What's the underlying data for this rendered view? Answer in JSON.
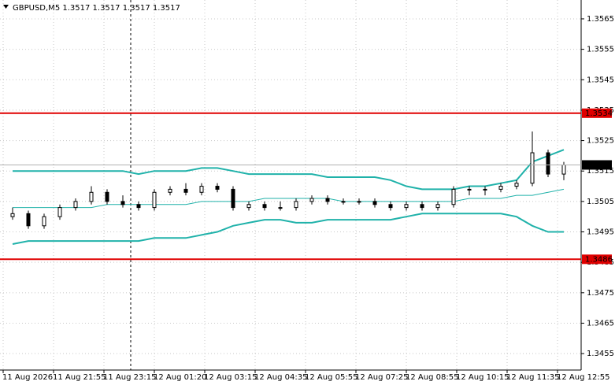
{
  "chart_data": {
    "type": "candlestick",
    "title": "GBPUSD,M5 1.3517 1.3517 1.3517 1.3517",
    "x": [
      4,
      9,
      14,
      19,
      24,
      29,
      34,
      39,
      44,
      49,
      54,
      59,
      64,
      69,
      74,
      79,
      84,
      89,
      94,
      99,
      104,
      109,
      114,
      119,
      124,
      129,
      134,
      139,
      144,
      149,
      154,
      159,
      164,
      169,
      174,
      179
    ],
    "open": [
      1.35,
      1.3501,
      1.3497,
      1.35,
      1.3503,
      1.3505,
      1.3508,
      1.3505,
      1.3504,
      1.3503,
      1.3508,
      1.3509,
      1.3508,
      1.351,
      1.3509,
      1.3503,
      1.3504,
      1.3503,
      1.3503,
      1.3505,
      1.3506,
      1.3505,
      1.3505,
      1.3505,
      1.3504,
      1.3503,
      1.3504,
      1.3503,
      1.3504,
      1.3509,
      1.3509,
      1.3509,
      1.351,
      1.3511,
      1.3521,
      1.3514
    ],
    "high": [
      1.3503,
      1.3502,
      1.3501,
      1.3504,
      1.3506,
      1.351,
      1.3509,
      1.3507,
      1.3505,
      1.3509,
      1.351,
      1.3511,
      1.3511,
      1.3511,
      1.351,
      1.3505,
      1.3505,
      1.3505,
      1.3506,
      1.3507,
      1.3507,
      1.3506,
      1.3506,
      1.3506,
      1.3505,
      1.3505,
      1.3505,
      1.3505,
      1.351,
      1.351,
      1.351,
      1.3511,
      1.3512,
      1.3528,
      1.3522,
      1.3518
    ],
    "low": [
      1.3499,
      1.3496,
      1.3496,
      1.3499,
      1.3502,
      1.3504,
      1.3504,
      1.3503,
      1.3502,
      1.3502,
      1.3507,
      1.3507,
      1.3507,
      1.3508,
      1.3502,
      1.3502,
      1.3502,
      1.3502,
      1.3502,
      1.3504,
      1.3504,
      1.3504,
      1.3504,
      1.3503,
      1.3502,
      1.3502,
      1.3502,
      1.3502,
      1.3503,
      1.3507,
      1.3507,
      1.3508,
      1.3509,
      1.351,
      1.3513,
      1.3512
    ],
    "close": [
      1.3501,
      1.3497,
      1.35,
      1.3503,
      1.3505,
      1.3508,
      1.3505,
      1.3504,
      1.3503,
      1.3508,
      1.3509,
      1.3508,
      1.351,
      1.3509,
      1.3503,
      1.3504,
      1.3503,
      1.3503,
      1.3505,
      1.3506,
      1.3505,
      1.3505,
      1.3505,
      1.3504,
      1.3503,
      1.3504,
      1.3503,
      1.3504,
      1.3509,
      1.3509,
      1.3509,
      1.351,
      1.3511,
      1.3521,
      1.3514,
      1.3517
    ],
    "series": [
      {
        "color": "#20b2aa",
        "values": [
          1.3515,
          1.3515,
          1.3515,
          1.3515,
          1.3515,
          1.3515,
          1.3515,
          1.3515,
          1.3514,
          1.3515,
          1.3515,
          1.3515,
          1.3516,
          1.3516,
          1.3515,
          1.3514,
          1.3514,
          1.3514,
          1.3514,
          1.3514,
          1.3513,
          1.3513,
          1.3513,
          1.3513,
          1.3512,
          1.351,
          1.3509,
          1.3509,
          1.3509,
          1.351,
          1.351,
          1.3511,
          1.3512,
          1.3518,
          1.352,
          1.3522
        ]
      },
      {
        "color": "#20b2aa",
        "values": [
          1.3503,
          1.3503,
          1.3503,
          1.3503,
          1.3503,
          1.3503,
          1.3504,
          1.3504,
          1.3504,
          1.3504,
          1.3504,
          1.3504,
          1.3505,
          1.3505,
          1.3505,
          1.3505,
          1.3506,
          1.3506,
          1.3506,
          1.3506,
          1.3506,
          1.3505,
          1.3505,
          1.3505,
          1.3505,
          1.3505,
          1.3505,
          1.3505,
          1.3505,
          1.3506,
          1.3506,
          1.3506,
          1.3507,
          1.3507,
          1.3508,
          1.3509
        ]
      },
      {
        "color": "#20b2aa",
        "values": [
          1.3491,
          1.3492,
          1.3492,
          1.3492,
          1.3492,
          1.3492,
          1.3492,
          1.3492,
          1.3492,
          1.3493,
          1.3493,
          1.3493,
          1.3494,
          1.3495,
          1.3497,
          1.3498,
          1.3499,
          1.3499,
          1.3498,
          1.3498,
          1.3499,
          1.3499,
          1.3499,
          1.3499,
          1.3499,
          1.35,
          1.3501,
          1.3501,
          1.3501,
          1.3501,
          1.3501,
          1.3501,
          1.35,
          1.3497,
          1.3495,
          1.3495
        ]
      }
    ],
    "levels": [
      {
        "value": 1.3534,
        "color": "#e00000"
      },
      {
        "value": 1.3486,
        "color": "#e00000"
      }
    ],
    "current_price": {
      "value": 1.3517,
      "color": "#b0b0b0"
    },
    "vlines": [
      41.5
    ],
    "xlim": [
      0,
      184.5
    ],
    "ylim": [
      1.34496,
      1.35712
    ],
    "yticks": [
      1.3565,
      1.3555,
      1.3545,
      1.3535,
      1.3525,
      1.3515,
      1.3505,
      1.3495,
      1.3485,
      1.3475,
      1.3465,
      1.3455
    ],
    "xticks": [
      {
        "value": 1,
        "label": "11 Aug 2026"
      },
      {
        "value": 17,
        "label": "11 Aug 21:55"
      },
      {
        "value": 33,
        "label": "11 Aug 23:15"
      },
      {
        "value": 49,
        "label": "12 Aug 01:20"
      },
      {
        "value": 65,
        "label": "12 Aug 03:15"
      },
      {
        "value": 81,
        "label": "12 Aug 04:35"
      },
      {
        "value": 97,
        "label": "12 Aug 05:55"
      },
      {
        "value": 113,
        "label": "12 Aug 07:25"
      },
      {
        "value": 129,
        "label": "12 Aug 08:55"
      },
      {
        "value": 145,
        "label": "12 Aug 10:15"
      },
      {
        "value": 161,
        "label": "12 Aug 11:35"
      },
      {
        "value": 177,
        "label": "12 Aug 12:55"
      }
    ],
    "grid": true
  }
}
